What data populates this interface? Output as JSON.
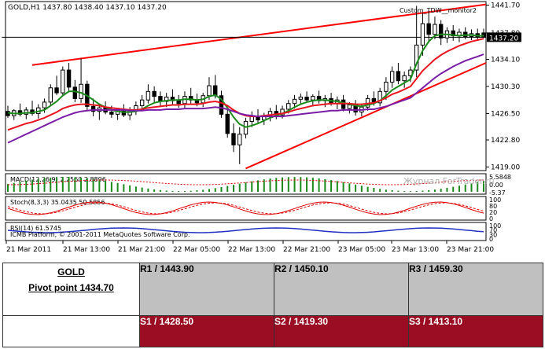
{
  "chart_data": {
    "type": "candlestick",
    "header": "GOLD,H1  1437.80 1438.40 1437.10 1437.20",
    "indicator_label": "Custom_TDW__monitor2",
    "current_price": "1437.20",
    "y_ticks": [
      "1441.70",
      "1437.80",
      "1434.10",
      "1430.30",
      "1426.50",
      "1422.80",
      "1419.00"
    ],
    "y_tick_values": [
      1441.7,
      1437.8,
      1434.1,
      1430.3,
      1426.5,
      1422.8,
      1419.0
    ],
    "ylim": [
      1418.5,
      1442.2
    ],
    "x_labels": [
      "21 Mar 2011",
      "21 Mar 13:00",
      "21 Mar 21:00",
      "22 Mar 05:00",
      "22 Mar 13:00",
      "22 Mar 21:00",
      "23 Mar 05:00",
      "23 Mar 13:00",
      "23 Mar 21:00"
    ],
    "watermark": "Журнал ForTrader.ru",
    "candles": [
      {
        "o": 1426.8,
        "h": 1427.6,
        "l": 1425.9,
        "c": 1426.2
      },
      {
        "o": 1426.2,
        "h": 1427.1,
        "l": 1425.6,
        "c": 1426.9
      },
      {
        "o": 1426.9,
        "h": 1427.9,
        "l": 1426.1,
        "c": 1426.4
      },
      {
        "o": 1426.4,
        "h": 1427.4,
        "l": 1425.7,
        "c": 1427.0
      },
      {
        "o": 1427.0,
        "h": 1428.3,
        "l": 1426.2,
        "c": 1426.5
      },
      {
        "o": 1426.5,
        "h": 1427.8,
        "l": 1425.8,
        "c": 1427.3
      },
      {
        "o": 1427.3,
        "h": 1428.6,
        "l": 1426.6,
        "c": 1428.1
      },
      {
        "o": 1428.1,
        "h": 1430.6,
        "l": 1427.6,
        "c": 1430.1
      },
      {
        "o": 1430.1,
        "h": 1431.8,
        "l": 1429.1,
        "c": 1429.4
      },
      {
        "o": 1429.4,
        "h": 1433.1,
        "l": 1428.9,
        "c": 1432.6
      },
      {
        "o": 1432.6,
        "h": 1433.6,
        "l": 1429.6,
        "c": 1430.2
      },
      {
        "o": 1430.2,
        "h": 1431.2,
        "l": 1428.1,
        "c": 1428.6
      },
      {
        "o": 1428.6,
        "h": 1434.2,
        "l": 1428.0,
        "c": 1430.6
      },
      {
        "o": 1430.6,
        "h": 1431.1,
        "l": 1427.0,
        "c": 1427.5
      },
      {
        "o": 1427.5,
        "h": 1428.6,
        "l": 1426.1,
        "c": 1426.8
      },
      {
        "o": 1426.8,
        "h": 1427.9,
        "l": 1425.6,
        "c": 1427.3
      },
      {
        "o": 1427.3,
        "h": 1428.2,
        "l": 1426.4,
        "c": 1426.7
      },
      {
        "o": 1426.7,
        "h": 1427.6,
        "l": 1425.9,
        "c": 1426.4
      },
      {
        "o": 1426.4,
        "h": 1427.2,
        "l": 1425.6,
        "c": 1426.9
      },
      {
        "o": 1426.9,
        "h": 1427.8,
        "l": 1426.0,
        "c": 1426.3
      },
      {
        "o": 1426.3,
        "h": 1427.4,
        "l": 1425.6,
        "c": 1427.0
      },
      {
        "o": 1427.0,
        "h": 1428.2,
        "l": 1426.3,
        "c": 1427.6
      },
      {
        "o": 1427.6,
        "h": 1429.1,
        "l": 1426.9,
        "c": 1428.4
      },
      {
        "o": 1428.4,
        "h": 1430.6,
        "l": 1427.9,
        "c": 1429.6
      },
      {
        "o": 1429.6,
        "h": 1430.3,
        "l": 1428.1,
        "c": 1428.9
      },
      {
        "o": 1428.9,
        "h": 1429.6,
        "l": 1427.6,
        "c": 1428.2
      },
      {
        "o": 1428.2,
        "h": 1429.4,
        "l": 1427.4,
        "c": 1428.8
      },
      {
        "o": 1428.8,
        "h": 1429.9,
        "l": 1427.8,
        "c": 1428.3
      },
      {
        "o": 1428.3,
        "h": 1429.1,
        "l": 1427.3,
        "c": 1427.9
      },
      {
        "o": 1427.9,
        "h": 1429.6,
        "l": 1427.1,
        "c": 1428.9
      },
      {
        "o": 1428.9,
        "h": 1430.1,
        "l": 1427.9,
        "c": 1428.4
      },
      {
        "o": 1428.4,
        "h": 1429.3,
        "l": 1427.5,
        "c": 1428.0
      },
      {
        "o": 1428.0,
        "h": 1429.4,
        "l": 1427.4,
        "c": 1429.0
      },
      {
        "o": 1429.0,
        "h": 1431.6,
        "l": 1428.4,
        "c": 1430.4
      },
      {
        "o": 1430.4,
        "h": 1431.9,
        "l": 1428.6,
        "c": 1429.0
      },
      {
        "o": 1429.0,
        "h": 1429.7,
        "l": 1425.9,
        "c": 1426.4
      },
      {
        "o": 1426.4,
        "h": 1427.2,
        "l": 1423.1,
        "c": 1423.7
      },
      {
        "o": 1423.7,
        "h": 1425.1,
        "l": 1421.1,
        "c": 1422.1
      },
      {
        "o": 1422.1,
        "h": 1424.6,
        "l": 1419.4,
        "c": 1423.6
      },
      {
        "o": 1423.6,
        "h": 1425.9,
        "l": 1423.0,
        "c": 1425.4
      },
      {
        "o": 1425.4,
        "h": 1426.8,
        "l": 1424.6,
        "c": 1426.1
      },
      {
        "o": 1426.1,
        "h": 1427.1,
        "l": 1425.1,
        "c": 1425.6
      },
      {
        "o": 1425.6,
        "h": 1426.6,
        "l": 1424.9,
        "c": 1426.2
      },
      {
        "o": 1426.2,
        "h": 1427.3,
        "l": 1425.4,
        "c": 1426.8
      },
      {
        "o": 1426.8,
        "h": 1427.7,
        "l": 1425.7,
        "c": 1426.3
      },
      {
        "o": 1426.3,
        "h": 1427.6,
        "l": 1425.8,
        "c": 1427.1
      },
      {
        "o": 1427.1,
        "h": 1428.4,
        "l": 1426.5,
        "c": 1427.9
      },
      {
        "o": 1427.9,
        "h": 1429.1,
        "l": 1427.2,
        "c": 1428.5
      },
      {
        "o": 1428.5,
        "h": 1429.3,
        "l": 1427.8,
        "c": 1428.8
      },
      {
        "o": 1428.8,
        "h": 1429.6,
        "l": 1428.1,
        "c": 1428.4
      },
      {
        "o": 1428.4,
        "h": 1429.2,
        "l": 1427.7,
        "c": 1428.9
      },
      {
        "o": 1428.9,
        "h": 1429.7,
        "l": 1427.9,
        "c": 1428.3
      },
      {
        "o": 1428.3,
        "h": 1429.1,
        "l": 1427.4,
        "c": 1428.6
      },
      {
        "o": 1428.6,
        "h": 1429.4,
        "l": 1427.6,
        "c": 1427.9
      },
      {
        "o": 1427.9,
        "h": 1428.9,
        "l": 1427.1,
        "c": 1428.4
      },
      {
        "o": 1428.4,
        "h": 1429.1,
        "l": 1426.8,
        "c": 1427.2
      },
      {
        "o": 1427.2,
        "h": 1428.1,
        "l": 1426.5,
        "c": 1427.7
      },
      {
        "o": 1427.7,
        "h": 1428.4,
        "l": 1426.2,
        "c": 1426.7
      },
      {
        "o": 1426.7,
        "h": 1427.9,
        "l": 1426.1,
        "c": 1427.4
      },
      {
        "o": 1427.4,
        "h": 1429.1,
        "l": 1426.9,
        "c": 1428.6
      },
      {
        "o": 1428.6,
        "h": 1429.6,
        "l": 1427.6,
        "c": 1428.0
      },
      {
        "o": 1428.0,
        "h": 1430.1,
        "l": 1427.5,
        "c": 1429.6
      },
      {
        "o": 1429.6,
        "h": 1431.6,
        "l": 1428.4,
        "c": 1430.9
      },
      {
        "o": 1430.9,
        "h": 1433.1,
        "l": 1430.1,
        "c": 1432.4
      },
      {
        "o": 1432.4,
        "h": 1433.6,
        "l": 1430.6,
        "c": 1431.1
      },
      {
        "o": 1431.1,
        "h": 1432.4,
        "l": 1430.1,
        "c": 1431.8
      },
      {
        "o": 1431.8,
        "h": 1433.1,
        "l": 1430.9,
        "c": 1432.6
      },
      {
        "o": 1432.6,
        "h": 1441.6,
        "l": 1431.6,
        "c": 1436.1
      },
      {
        "o": 1436.1,
        "h": 1440.6,
        "l": 1434.6,
        "c": 1439.1
      },
      {
        "o": 1439.1,
        "h": 1440.9,
        "l": 1436.6,
        "c": 1437.6
      },
      {
        "o": 1437.6,
        "h": 1440.1,
        "l": 1436.9,
        "c": 1439.0
      },
      {
        "o": 1439.0,
        "h": 1439.6,
        "l": 1436.1,
        "c": 1437.1
      },
      {
        "o": 1437.1,
        "h": 1438.6,
        "l": 1436.4,
        "c": 1438.1
      },
      {
        "o": 1438.1,
        "h": 1438.9,
        "l": 1436.7,
        "c": 1437.4
      },
      {
        "o": 1437.4,
        "h": 1438.4,
        "l": 1436.5,
        "c": 1437.9
      },
      {
        "o": 1437.9,
        "h": 1438.6,
        "l": 1436.9,
        "c": 1437.3
      },
      {
        "o": 1437.3,
        "h": 1438.3,
        "l": 1436.8,
        "c": 1437.7
      },
      {
        "o": 1437.7,
        "h": 1438.4,
        "l": 1436.9,
        "c": 1437.2
      },
      {
        "o": 1437.8,
        "h": 1438.4,
        "l": 1437.1,
        "c": 1437.2
      }
    ],
    "moving_averages": [
      {
        "name": "",
        "color": "#1a8a1a",
        "values": [
          1426.6,
          1426.5,
          1426.5,
          1426.6,
          1426.6,
          1426.8,
          1427.0,
          1427.6,
          1428.2,
          1429.0,
          1429.6,
          1429.6,
          1429.4,
          1429.0,
          1428.4,
          1427.8,
          1427.4,
          1427.0,
          1426.8,
          1426.7,
          1426.7,
          1426.8,
          1427.1,
          1427.6,
          1428.0,
          1428.2,
          1428.3,
          1428.4,
          1428.4,
          1428.5,
          1428.5,
          1428.4,
          1428.5,
          1428.9,
          1429.1,
          1428.5,
          1427.3,
          1426.0,
          1425.0,
          1424.6,
          1424.8,
          1425.1,
          1425.5,
          1425.9,
          1426.2,
          1426.5,
          1426.9,
          1427.4,
          1427.8,
          1428.1,
          1428.3,
          1428.4,
          1428.4,
          1428.3,
          1428.2,
          1428.0,
          1427.8,
          1427.6,
          1427.5,
          1427.7,
          1427.9,
          1428.3,
          1429.0,
          1429.8,
          1430.3,
          1430.8,
          1431.3,
          1433.5,
          1435.3,
          1436.6,
          1437.4,
          1437.6,
          1437.6,
          1437.5,
          1437.4,
          1437.5,
          1437.5,
          1437.4,
          1437.4
        ]
      },
      {
        "name": "",
        "color": "#e8141e",
        "values": [
          1424.2,
          1424.5,
          1424.8,
          1425.1,
          1425.3,
          1425.6,
          1425.9,
          1426.3,
          1426.7,
          1427.2,
          1427.5,
          1427.7,
          1427.8,
          1427.8,
          1427.7,
          1427.6,
          1427.4,
          1427.3,
          1427.2,
          1427.1,
          1427.0,
          1427.0,
          1427.1,
          1427.3,
          1427.4,
          1427.5,
          1427.6,
          1427.7,
          1427.7,
          1427.8,
          1427.8,
          1427.8,
          1427.9,
          1428.1,
          1428.2,
          1428.0,
          1427.6,
          1427.0,
          1426.5,
          1426.2,
          1426.1,
          1426.1,
          1426.2,
          1426.3,
          1426.4,
          1426.5,
          1426.7,
          1427.0,
          1427.2,
          1427.4,
          1427.6,
          1427.7,
          1427.8,
          1427.9,
          1427.9,
          1427.9,
          1427.9,
          1427.8,
          1427.8,
          1427.9,
          1428.0,
          1428.3,
          1428.7,
          1429.2,
          1429.5,
          1429.9,
          1430.3,
          1431.4,
          1432.5,
          1433.3,
          1434.1,
          1434.7,
          1435.2,
          1435.6,
          1436.0,
          1436.3,
          1436.6,
          1436.8,
          1437.0
        ]
      },
      {
        "name": "",
        "color": "#7a1ea8",
        "values": [
          1422.4,
          1422.8,
          1423.2,
          1423.6,
          1424.0,
          1424.4,
          1424.8,
          1425.2,
          1425.6,
          1426.0,
          1426.3,
          1426.6,
          1426.8,
          1426.9,
          1427.0,
          1427.0,
          1427.0,
          1427.0,
          1427.0,
          1427.0,
          1426.9,
          1426.9,
          1426.9,
          1427.0,
          1427.0,
          1427.0,
          1427.1,
          1427.1,
          1427.1,
          1427.2,
          1427.2,
          1427.2,
          1427.2,
          1427.3,
          1427.4,
          1427.3,
          1427.1,
          1426.8,
          1426.5,
          1426.3,
          1426.2,
          1426.1,
          1426.1,
          1426.1,
          1426.1,
          1426.1,
          1426.2,
          1426.3,
          1426.4,
          1426.5,
          1426.6,
          1426.7,
          1426.8,
          1426.9,
          1426.9,
          1427.0,
          1427.0,
          1427.0,
          1427.0,
          1427.1,
          1427.1,
          1427.3,
          1427.5,
          1427.8,
          1428.1,
          1428.4,
          1428.7,
          1429.4,
          1430.1,
          1430.8,
          1431.5,
          1432.1,
          1432.6,
          1433.1,
          1433.5,
          1433.9,
          1434.2,
          1434.5,
          1434.8
        ]
      }
    ],
    "trendlines": [
      {
        "x1": 4,
        "y1": 1433.3,
        "x2": 82,
        "y2": 1441.8
      },
      {
        "x1": 39,
        "y1": 1418.8,
        "x2": 82,
        "y2": 1433.6
      },
      {
        "x1": -1,
        "y1": 1437.2,
        "x2": 82,
        "y2": 1437.2
      }
    ],
    "sub_panels": {
      "macd_label": "MACD(12,26,9) 2.2560 2.8896",
      "macd_ticks": [
        "5.5848",
        "0.00",
        "-5.37"
      ],
      "stoch_label": "Stoch(8,3,3) 35.0435 50.5856",
      "stoch_ticks": [
        "100",
        "80",
        "20",
        "0"
      ],
      "rsi_label": "RSI(14) 61.5745",
      "rsi_ticks": [
        "100",
        "70",
        "30",
        "0"
      ],
      "copyright": "ICMB Platform, © 2001-2011 MetaQuotes Software Corp."
    }
  },
  "pivot_table": {
    "symbol": "GOLD",
    "pivot_point": "Pivot point 1434.70",
    "r1": "R1 / 1443.90",
    "r2": "R2 / 1450.10",
    "r3": "R3 / 1459.30",
    "s1": "S1 / 1428.50",
    "s2": "S2 / 1419.30",
    "s3": "S3 / 1413.10",
    "colors": {
      "resistance_bg": "#c0c0c0",
      "support_bg": "#9b0d23"
    }
  }
}
